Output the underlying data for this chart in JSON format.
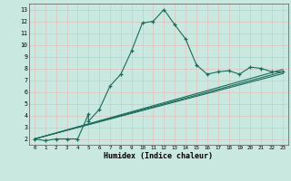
{
  "title": "",
  "xlabel": "Humidex (Indice chaleur)",
  "bg_color": "#c8e8e0",
  "line_color": "#1a6b5a",
  "xlim": [
    -0.5,
    23.5
  ],
  "ylim": [
    1.5,
    13.5
  ],
  "xticks": [
    0,
    1,
    2,
    3,
    4,
    5,
    6,
    7,
    8,
    9,
    10,
    11,
    12,
    13,
    14,
    15,
    16,
    17,
    18,
    19,
    20,
    21,
    22,
    23
  ],
  "yticks": [
    2,
    3,
    4,
    5,
    6,
    7,
    8,
    9,
    10,
    11,
    12,
    13
  ],
  "line1_x": [
    0,
    1,
    2,
    3,
    4,
    5,
    5,
    6,
    7,
    8,
    9,
    10,
    11,
    12,
    13,
    14,
    15,
    16,
    17,
    18,
    19,
    20,
    21,
    22,
    23
  ],
  "line1_y": [
    2.0,
    1.85,
    2.0,
    2.0,
    2.0,
    4.1,
    3.5,
    4.5,
    6.5,
    7.5,
    9.5,
    11.85,
    12.0,
    13.0,
    11.7,
    10.5,
    8.3,
    7.5,
    7.7,
    7.8,
    7.5,
    8.1,
    8.0,
    7.7,
    7.7
  ],
  "line2_x": [
    0,
    23
  ],
  "line2_y": [
    2.0,
    7.7
  ],
  "line3_x": [
    0,
    23
  ],
  "line3_y": [
    2.0,
    7.9
  ],
  "line4_x": [
    0,
    23
  ],
  "line4_y": [
    2.0,
    7.55
  ]
}
